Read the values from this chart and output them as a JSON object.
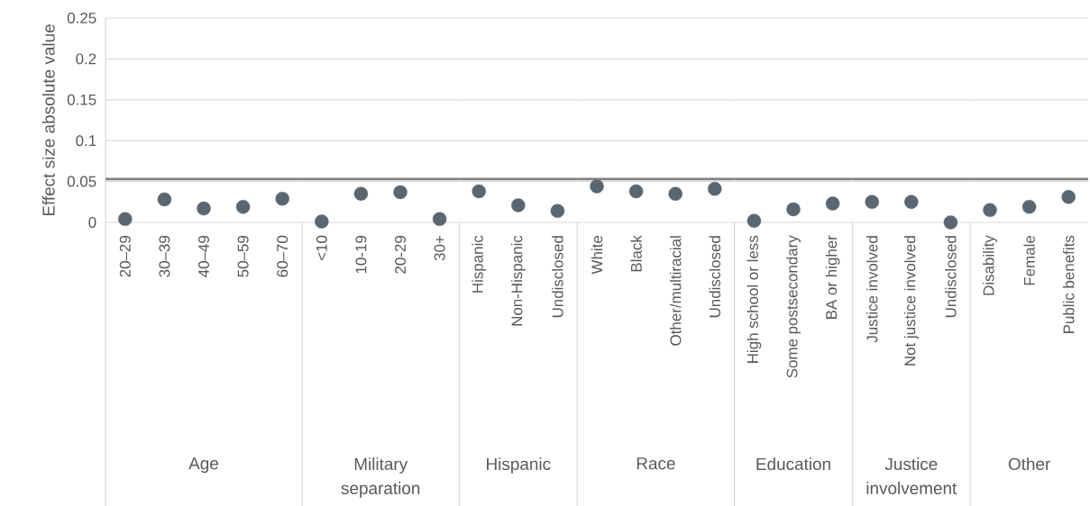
{
  "chart_data": [
    {
      "type": "scatter",
      "ylabel": "Effect size absolute value",
      "xlabel": "Age",
      "categories": [
        "20–29",
        "30–39",
        "40–49",
        "50–59",
        "60–70"
      ],
      "values": [
        0.004,
        0.028,
        0.017,
        0.019,
        0.029
      ],
      "color": "#5a6670",
      "marker": "circle",
      "ylim": [
        0,
        0.25
      ],
      "yticks": [
        0,
        0.05,
        0.1,
        0.15,
        0.2,
        0.25
      ],
      "grid": "y",
      "ref_lines": [
        {
          "axis": "y",
          "value": 0.053,
          "color": "#808080"
        }
      ]
    },
    {
      "type": "scatter",
      "xlabel": "Military separation",
      "categories": [
        "<10",
        "10-19",
        "20-29",
        "30+"
      ],
      "values": [
        0.001,
        0.035,
        0.037,
        0.004
      ],
      "color": "#5a6670",
      "marker": "circle",
      "ylim": [
        0,
        0.25
      ],
      "yticks": [
        0,
        0.05,
        0.1,
        0.15,
        0.2,
        0.25
      ],
      "grid": "y",
      "tick_labels": "x",
      "ref_lines": [
        {
          "axis": "y",
          "value": 0.053,
          "color": "#808080"
        }
      ]
    },
    {
      "type": "scatter",
      "xlabel": "Hispanic",
      "categories": [
        "Hispanic",
        "Non-Hispanic",
        "Undisclosed"
      ],
      "values": [
        0.038,
        0.021,
        0.014
      ],
      "color": "#5a6670",
      "marker": "circle",
      "ylim": [
        0,
        0.25
      ],
      "yticks": [
        0,
        0.05,
        0.1,
        0.15,
        0.2,
        0.25
      ],
      "grid": "y",
      "tick_labels": "x",
      "ref_lines": [
        {
          "axis": "y",
          "value": 0.053,
          "color": "#808080"
        }
      ]
    },
    {
      "type": "scatter",
      "xlabel": "Race",
      "categories": [
        "White",
        "Black",
        "Other/multiracial",
        "Undisclosed"
      ],
      "values": [
        0.044,
        0.038,
        0.035,
        0.041
      ],
      "color": "#5a6670",
      "marker": "circle",
      "ylim": [
        0,
        0.25
      ],
      "yticks": [
        0,
        0.05,
        0.1,
        0.15,
        0.2,
        0.25
      ],
      "grid": "y",
      "tick_labels": "x",
      "ref_lines": [
        {
          "axis": "y",
          "value": 0.053,
          "color": "#808080"
        }
      ]
    },
    {
      "type": "scatter",
      "xlabel": "Education",
      "categories": [
        "High school or less",
        "Some postsecondary",
        "BA or higher"
      ],
      "values": [
        0.002,
        0.016,
        0.023
      ],
      "color": "#5a6670",
      "marker": "circle",
      "ylim": [
        0,
        0.25
      ],
      "yticks": [
        0,
        0.05,
        0.1,
        0.15,
        0.2,
        0.25
      ],
      "grid": "y",
      "tick_labels": "x",
      "ref_lines": [
        {
          "axis": "y",
          "value": 0.053,
          "color": "#808080"
        }
      ]
    },
    {
      "type": "scatter",
      "xlabel": "Justice involvement",
      "categories": [
        "Justice involved",
        "Not justice involved",
        "Undisclosed"
      ],
      "values": [
        0.025,
        0.025,
        0.0
      ],
      "color": "#5a6670",
      "marker": "circle",
      "ylim": [
        0,
        0.25
      ],
      "yticks": [
        0,
        0.05,
        0.1,
        0.15,
        0.2,
        0.25
      ],
      "grid": "y",
      "tick_labels": "x",
      "ref_lines": [
        {
          "axis": "y",
          "value": 0.053,
          "color": "#808080"
        }
      ]
    },
    {
      "type": "scatter",
      "xlabel": "Other",
      "categories": [
        "Disability",
        "Female",
        "Public benefits"
      ],
      "values": [
        0.015,
        0.019,
        0.031
      ],
      "color": "#5a6670",
      "marker": "circle",
      "ylim": [
        0,
        0.25
      ],
      "yticks": [
        0,
        0.05,
        0.1,
        0.15,
        0.2,
        0.25
      ],
      "grid": "y",
      "tick_labels": "x",
      "ref_lines": [
        {
          "axis": "y",
          "value": 0.053,
          "color": "#808080"
        }
      ]
    }
  ]
}
